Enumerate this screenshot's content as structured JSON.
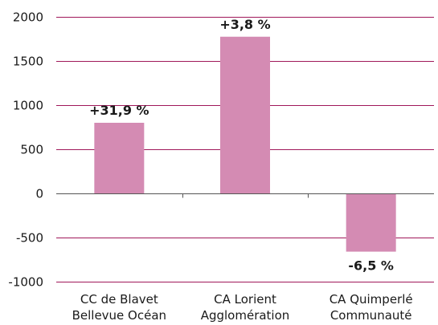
{
  "chart_data": {
    "type": "bar",
    "categories": [
      [
        "CC de Blavet",
        "Bellevue Océan"
      ],
      [
        "CA Lorient",
        "Agglomération"
      ],
      [
        "CA Quimperlé",
        "Communauté"
      ]
    ],
    "values": [
      800,
      1775,
      -660
    ],
    "data_labels": [
      "+31,9 %",
      "+3,8 %",
      "-6,5 %"
    ],
    "yticks": [
      "2000",
      "1500",
      "1000",
      "500",
      "0",
      "-500",
      "-1000"
    ],
    "ylim": [
      -1000,
      2000
    ],
    "grid": true,
    "colors": {
      "bar": "#d48bb3",
      "grid": "#a0185a",
      "axis": "#555555"
    }
  }
}
